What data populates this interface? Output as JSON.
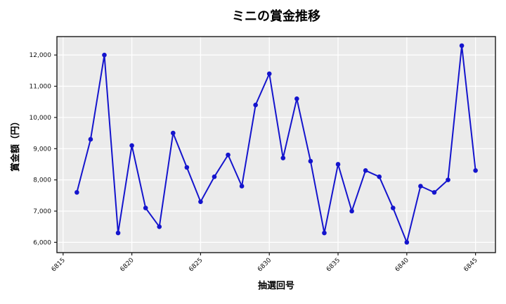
{
  "chart_data": {
    "type": "line",
    "title": "ミニの賞金推移",
    "xlabel": "抽選回号",
    "ylabel": "賞金額（円）",
    "series_name": "賞金額",
    "x": [
      6816,
      6817,
      6818,
      6819,
      6820,
      6821,
      6822,
      6823,
      6824,
      6825,
      6826,
      6827,
      6828,
      6829,
      6830,
      6831,
      6832,
      6833,
      6834,
      6835,
      6836,
      6837,
      6838,
      6839,
      6840,
      6841,
      6842,
      6843,
      6844,
      6845
    ],
    "values": [
      7600,
      9300,
      12000,
      6300,
      9100,
      7100,
      6500,
      9500,
      8400,
      7300,
      8100,
      8800,
      7800,
      10400,
      11400,
      8700,
      10600,
      8600,
      6300,
      8500,
      7000,
      8300,
      8100,
      7100,
      6000,
      7800,
      7600,
      8000,
      12300,
      8300
    ],
    "xticks": [
      6815,
      6820,
      6825,
      6830,
      6835,
      6840,
      6845
    ],
    "xtick_labels": [
      "6815",
      "6820",
      "6825",
      "6830",
      "6835",
      "6840",
      "6845"
    ],
    "yticks": [
      6000,
      7000,
      8000,
      9000,
      10000,
      11000,
      12000
    ],
    "ytick_labels": [
      "6,000",
      "7,000",
      "8,000",
      "9,000",
      "10,000",
      "11,000",
      "12,000"
    ],
    "xlim": [
      6814.55,
      6846.45
    ],
    "ylim": [
      5670,
      12590
    ],
    "grid": true,
    "legend": "none",
    "line_color": "#1414cd",
    "marker": "circle",
    "plot_bg": "#ebebeb",
    "grid_color": "#ffffff",
    "border_color": "#1a1a1a",
    "tick_color": "#111111"
  }
}
